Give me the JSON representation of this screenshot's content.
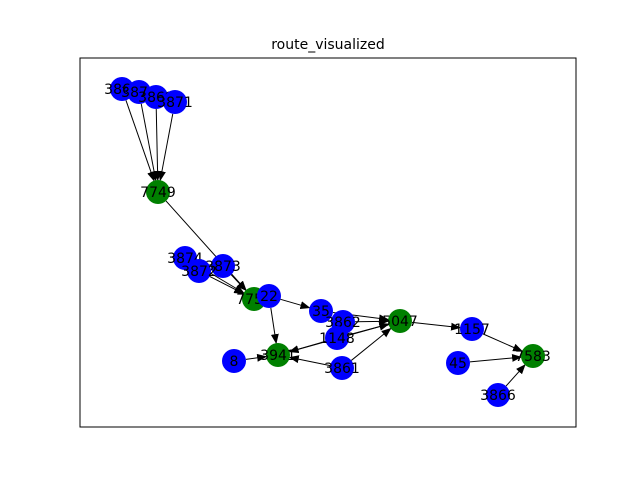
{
  "title": "route_visualized",
  "colors": {
    "route_node": "#008000",
    "other_node": "#0000ff",
    "edge": "#000000",
    "frame": "#000000",
    "background": "#ffffff"
  },
  "graph": {
    "nodes": [
      {
        "id": "n3868",
        "label": "3868",
        "group": "other_node"
      },
      {
        "id": "n3870",
        "label": "3870",
        "group": "other_node"
      },
      {
        "id": "n3869",
        "label": "3869",
        "group": "other_node"
      },
      {
        "id": "n3871",
        "label": "3871",
        "group": "other_node"
      },
      {
        "id": "n7749",
        "label": "7749",
        "group": "route_node"
      },
      {
        "id": "n3874",
        "label": "3874",
        "group": "other_node"
      },
      {
        "id": "n3873",
        "label": "3873",
        "group": "other_node"
      },
      {
        "id": "n3872",
        "label": "3872",
        "group": "other_node"
      },
      {
        "id": "n7752",
        "label": "7752",
        "group": "route_node"
      },
      {
        "id": "n22",
        "label": "22",
        "group": "other_node"
      },
      {
        "id": "n35",
        "label": "35",
        "group": "other_node"
      },
      {
        "id": "n3862",
        "label": "3862",
        "group": "other_node"
      },
      {
        "id": "n1148",
        "label": "1148",
        "group": "other_node"
      },
      {
        "id": "n5047",
        "label": "5047",
        "group": "route_node"
      },
      {
        "id": "n1157",
        "label": "1157",
        "group": "other_node"
      },
      {
        "id": "n7583",
        "label": "7583",
        "group": "route_node"
      },
      {
        "id": "n45",
        "label": "45",
        "group": "other_node"
      },
      {
        "id": "n3866",
        "label": "3866",
        "group": "other_node"
      },
      {
        "id": "n8",
        "label": "8",
        "group": "other_node"
      },
      {
        "id": "n3941",
        "label": "3941",
        "group": "route_node"
      },
      {
        "id": "n3861",
        "label": "3861",
        "group": "other_node"
      }
    ],
    "edges": [
      {
        "from": "n3868",
        "to": "n7749"
      },
      {
        "from": "n3870",
        "to": "n7749"
      },
      {
        "from": "n3869",
        "to": "n7749"
      },
      {
        "from": "n3871",
        "to": "n7749"
      },
      {
        "from": "n7749",
        "to": "n7752"
      },
      {
        "from": "n3874",
        "to": "n7752"
      },
      {
        "from": "n3872",
        "to": "n7752"
      },
      {
        "from": "n3873",
        "to": "n7752"
      },
      {
        "from": "n22",
        "to": "n3941"
      },
      {
        "from": "n22",
        "to": "n35"
      },
      {
        "from": "n35",
        "to": "n5047"
      },
      {
        "from": "n3862",
        "to": "n5047"
      },
      {
        "from": "n1148",
        "to": "n5047"
      },
      {
        "from": "n3941",
        "to": "n5047"
      },
      {
        "from": "n1148",
        "to": "n3941"
      },
      {
        "from": "n3861",
        "to": "n3941"
      },
      {
        "from": "n3861",
        "to": "n5047"
      },
      {
        "from": "n8",
        "to": "n3941"
      },
      {
        "from": "n5047",
        "to": "n1157"
      },
      {
        "from": "n1157",
        "to": "n7583"
      },
      {
        "from": "n45",
        "to": "n7583"
      },
      {
        "from": "n3866",
        "to": "n7583"
      }
    ]
  }
}
